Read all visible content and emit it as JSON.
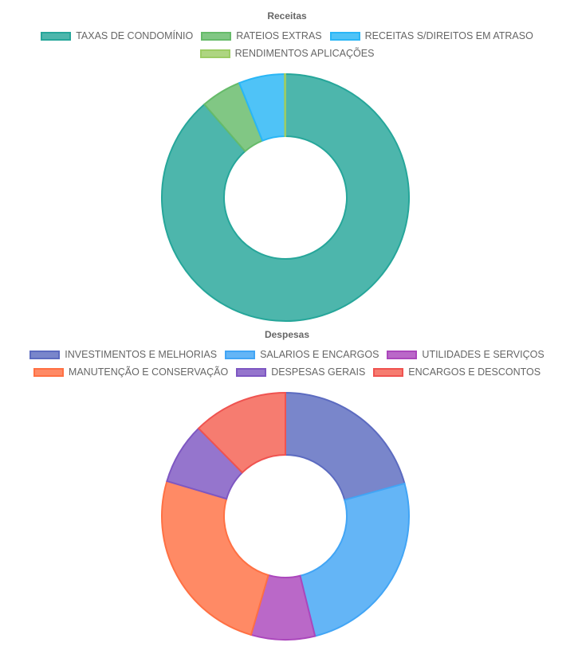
{
  "chart_data": [
    {
      "type": "pie",
      "title": "Receitas",
      "categories": [
        "TAXAS DE CONDOMÍNIO",
        "RATEIOS EXTRAS",
        "RECEITAS S/DIREITOS EM ATRASO",
        "RENDIMENTOS APLICAÇÕES"
      ],
      "values": [
        88.7,
        5.3,
        6.0,
        0.1
      ],
      "colors": [
        "#4db6ac",
        "#81c784",
        "#4fc3f7",
        "#aed581"
      ],
      "borders": [
        "#26a69a",
        "#66bb6a",
        "#29b6f6",
        "#9ccc65"
      ],
      "legend": "top",
      "donut": true
    },
    {
      "type": "pie",
      "title": "Despesas",
      "categories": [
        "INVESTIMENTOS E MELHORIAS",
        "SALARIOS E ENCARGOS",
        "UTILIDADES E SERVIÇOS",
        "MANUTENÇÃO E CONSERVAÇÃO",
        "DESPESAS GERAIS",
        "ENCARGOS E DESCONTOS"
      ],
      "values": [
        19.9,
        24.4,
        8.0,
        24.1,
        7.7,
        11.9
      ],
      "colors": [
        "#7986cb",
        "#64b5f6",
        "#ba68c8",
        "#ff8a65",
        "#9575cd",
        "#f67c70"
      ],
      "borders": [
        "#5c6bc0",
        "#42a5f5",
        "#ab47bc",
        "#ff7043",
        "#7e57c2",
        "#ef5350"
      ],
      "legend": "top",
      "donut": true
    }
  ]
}
